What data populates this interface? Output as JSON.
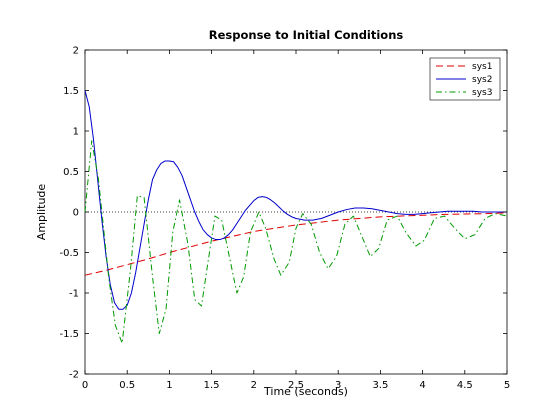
{
  "chart_data": {
    "type": "line",
    "title": "Response to Initial Conditions",
    "xlabel": "Time (seconds)",
    "ylabel": "Amplitude",
    "xlim": [
      0,
      5
    ],
    "ylim": [
      -2,
      2
    ],
    "x_ticks": [
      "0",
      "0.5",
      "1",
      "1.5",
      "2",
      "2.5",
      "3",
      "3.5",
      "4",
      "4.5",
      "5"
    ],
    "y_ticks": [
      "-2",
      "-1.5",
      "-1",
      "-0.5",
      "0",
      "0.5",
      "1",
      "1.5",
      "2"
    ],
    "grid": false,
    "legend_position": "top-right",
    "zero_reference_line": true,
    "series": [
      {
        "name": "sys1",
        "color": "#e00000",
        "style": "dashed",
        "x": [
          0,
          0.25,
          0.5,
          0.75,
          1.0,
          1.25,
          1.5,
          1.75,
          2.0,
          2.25,
          2.5,
          2.75,
          3.0,
          3.25,
          3.5,
          3.75,
          4.0,
          4.25,
          4.5,
          4.75,
          5.0
        ],
        "y": [
          -0.78,
          -0.72,
          -0.65,
          -0.58,
          -0.5,
          -0.43,
          -0.36,
          -0.3,
          -0.24,
          -0.2,
          -0.16,
          -0.13,
          -0.1,
          -0.08,
          -0.06,
          -0.05,
          -0.04,
          -0.03,
          -0.025,
          -0.02,
          -0.01
        ]
      },
      {
        "name": "sys2",
        "color": "#0000cc",
        "style": "solid",
        "x": [
          0,
          0.05,
          0.1,
          0.15,
          0.2,
          0.25,
          0.3,
          0.35,
          0.4,
          0.45,
          0.5,
          0.55,
          0.6,
          0.65,
          0.7,
          0.75,
          0.8,
          0.85,
          0.9,
          0.95,
          1.0,
          1.05,
          1.1,
          1.15,
          1.2,
          1.25,
          1.3,
          1.35,
          1.4,
          1.45,
          1.5,
          1.55,
          1.6,
          1.65,
          1.7,
          1.75,
          1.8,
          1.85,
          1.9,
          1.95,
          2.0,
          2.05,
          2.1,
          2.15,
          2.2,
          2.25,
          2.3,
          2.35,
          2.4,
          2.45,
          2.5,
          2.55,
          2.6,
          2.65,
          2.7,
          2.75,
          2.8,
          2.85,
          2.9,
          2.95,
          3.0,
          3.1,
          3.2,
          3.3,
          3.4,
          3.5,
          3.6,
          3.7,
          3.8,
          3.9,
          4.0,
          4.1,
          4.2,
          4.3,
          4.4,
          4.5,
          4.6,
          4.7,
          4.8,
          4.9,
          5.0
        ],
        "y": [
          1.5,
          1.3,
          0.9,
          0.4,
          -0.1,
          -0.55,
          -0.9,
          -1.12,
          -1.2,
          -1.2,
          -1.15,
          -1.0,
          -0.75,
          -0.45,
          -0.15,
          0.15,
          0.4,
          0.52,
          0.6,
          0.63,
          0.63,
          0.62,
          0.55,
          0.45,
          0.3,
          0.15,
          0.0,
          -0.12,
          -0.22,
          -0.28,
          -0.32,
          -0.34,
          -0.34,
          -0.32,
          -0.28,
          -0.22,
          -0.14,
          -0.06,
          0.02,
          0.08,
          0.14,
          0.18,
          0.19,
          0.18,
          0.15,
          0.11,
          0.06,
          0.01,
          -0.03,
          -0.06,
          -0.08,
          -0.09,
          -0.1,
          -0.1,
          -0.1,
          -0.09,
          -0.08,
          -0.06,
          -0.04,
          -0.02,
          0.0,
          0.03,
          0.05,
          0.05,
          0.04,
          0.02,
          0.0,
          -0.02,
          -0.03,
          -0.03,
          -0.02,
          -0.01,
          0.0,
          0.01,
          0.01,
          0.01,
          0.01,
          0.0,
          0.0,
          0.0,
          0.0
        ]
      },
      {
        "name": "sys3",
        "color": "#009900",
        "style": "dash-dot",
        "x": [
          0,
          0.08,
          0.16,
          0.28,
          0.36,
          0.44,
          0.54,
          0.62,
          0.7,
          0.8,
          0.88,
          0.96,
          1.04,
          1.12,
          1.22,
          1.3,
          1.38,
          1.46,
          1.54,
          1.62,
          1.72,
          1.8,
          1.88,
          1.96,
          2.06,
          2.14,
          2.24,
          2.32,
          2.42,
          2.5,
          2.58,
          2.68,
          2.78,
          2.88,
          2.98,
          3.08,
          3.18,
          3.28,
          3.38,
          3.48,
          3.58,
          3.7,
          3.8,
          3.92,
          4.02,
          4.14,
          4.26,
          4.38,
          4.5,
          4.62,
          4.74,
          4.86,
          5.0
        ],
        "y": [
          0.0,
          0.88,
          0.4,
          -0.8,
          -1.4,
          -1.62,
          -0.7,
          0.2,
          0.18,
          -0.8,
          -1.5,
          -1.2,
          -0.25,
          0.15,
          -0.4,
          -1.08,
          -1.16,
          -0.6,
          -0.05,
          -0.1,
          -0.6,
          -1.0,
          -0.8,
          -0.25,
          0.0,
          -0.2,
          -0.58,
          -0.78,
          -0.62,
          -0.2,
          -0.02,
          -0.15,
          -0.5,
          -0.7,
          -0.55,
          -0.15,
          -0.05,
          -0.3,
          -0.55,
          -0.45,
          -0.1,
          -0.05,
          -0.25,
          -0.42,
          -0.35,
          -0.08,
          -0.05,
          -0.2,
          -0.33,
          -0.28,
          -0.08,
          -0.02,
          -0.05
        ]
      }
    ]
  }
}
